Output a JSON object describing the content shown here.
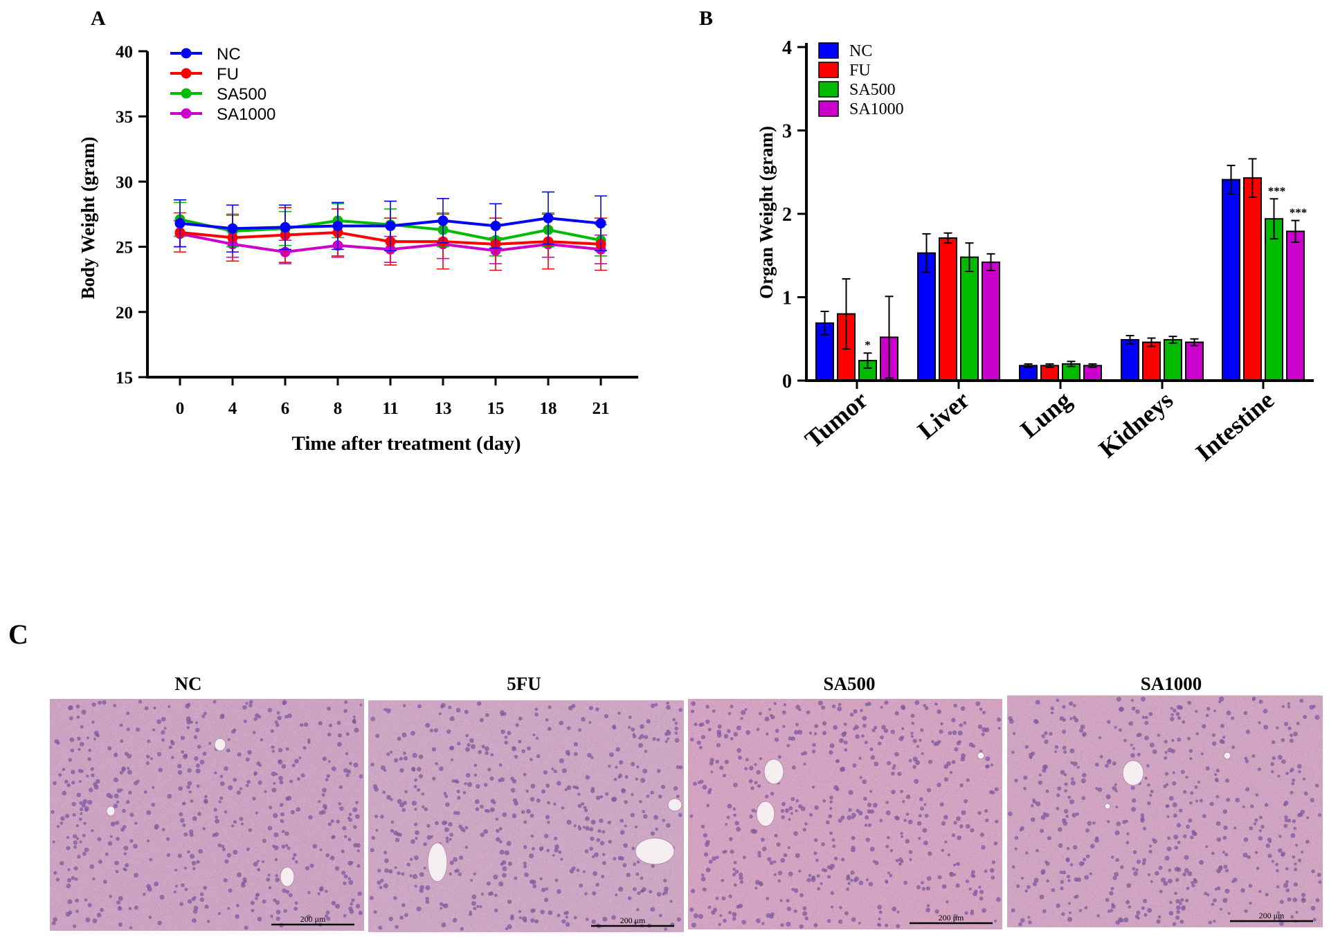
{
  "panels": {
    "a_letter": "A",
    "b_letter": "B",
    "c_letter": "C"
  },
  "colors": {
    "NC": "#0000ff",
    "FU": "#ff0000",
    "SA500": "#00bb00",
    "SA1000": "#cc00cc"
  },
  "chart_data": [
    {
      "type": "line",
      "title": "",
      "xlabel": "Time after treatment (day)",
      "ylabel": "Body Weight (gram)",
      "ylim": [
        15,
        40
      ],
      "yticks": [
        "15",
        "20",
        "25",
        "30",
        "35",
        "40"
      ],
      "x": [
        "0",
        "4",
        "6",
        "8",
        "11",
        "13",
        "15",
        "18",
        "21"
      ],
      "legend": [
        "NC",
        "FU",
        "SA500",
        "SA1000"
      ],
      "series": [
        {
          "name": "NC",
          "values": [
            26.8,
            26.4,
            26.5,
            26.6,
            26.6,
            27.0,
            26.6,
            27.2,
            26.8
          ],
          "errors": [
            1.8,
            1.8,
            1.7,
            1.8,
            1.9,
            1.7,
            1.7,
            2.0,
            2.1
          ]
        },
        {
          "name": "FU",
          "values": [
            26.1,
            25.7,
            25.9,
            26.1,
            25.4,
            25.4,
            25.2,
            25.4,
            25.2
          ],
          "errors": [
            1.5,
            1.8,
            2.1,
            1.8,
            1.8,
            2.1,
            2.0,
            2.1,
            2.0
          ]
        },
        {
          "name": "SA500",
          "values": [
            27.1,
            26.2,
            26.4,
            27.0,
            26.7,
            26.3,
            25.5,
            26.3,
            25.5
          ],
          "errors": [
            1.3,
            1.2,
            1.3,
            1.3,
            1.2,
            1.3,
            1.2,
            1.3,
            1.2
          ]
        },
        {
          "name": "SA1000",
          "values": [
            26.0,
            25.2,
            24.6,
            25.1,
            24.8,
            25.2,
            24.7,
            25.2,
            24.8
          ],
          "errors": [
            1.0,
            1.0,
            0.9,
            0.9,
            1.0,
            1.1,
            1.0,
            1.0,
            1.1
          ]
        }
      ]
    },
    {
      "type": "bar",
      "title": "",
      "xlabel": "",
      "ylabel": "Organ Weight (gram)",
      "ylim": [
        0,
        4
      ],
      "yticks": [
        "0",
        "1",
        "2",
        "3",
        "4"
      ],
      "categories": [
        "Tumor",
        "Liver",
        "Lung",
        "Kidneys",
        "Intestine"
      ],
      "legend": [
        "NC",
        "FU",
        "SA500",
        "SA1000"
      ],
      "series": [
        {
          "name": "NC",
          "values": [
            0.69,
            1.53,
            0.18,
            0.49,
            2.41
          ],
          "errors": [
            0.14,
            0.23,
            0.02,
            0.05,
            0.17
          ],
          "annotations": [
            "",
            "",
            "",
            "",
            ""
          ]
        },
        {
          "name": "FU",
          "values": [
            0.8,
            1.71,
            0.18,
            0.46,
            2.43
          ],
          "errors": [
            0.42,
            0.06,
            0.02,
            0.05,
            0.23
          ],
          "annotations": [
            "",
            "",
            "",
            "",
            ""
          ]
        },
        {
          "name": "SA500",
          "values": [
            0.24,
            1.48,
            0.2,
            0.49,
            1.94
          ],
          "errors": [
            0.09,
            0.17,
            0.03,
            0.04,
            0.24
          ],
          "annotations": [
            "*",
            "",
            "",
            "",
            "***"
          ]
        },
        {
          "name": "SA1000",
          "values": [
            0.52,
            1.42,
            0.18,
            0.46,
            1.79
          ],
          "errors": [
            0.49,
            0.1,
            0.02,
            0.04,
            0.13
          ],
          "annotations": [
            "",
            "",
            "",
            "",
            "***"
          ]
        }
      ]
    }
  ],
  "histology": {
    "images": [
      {
        "label": "NC",
        "scale": "200 μm",
        "tint": "#cf9fc3"
      },
      {
        "label": "5FU",
        "scale": "200 μm",
        "tint": "#d0a3c4"
      },
      {
        "label": "SA500",
        "scale": "200 μm",
        "tint": "#d79fc2"
      },
      {
        "label": "SA1000",
        "scale": "200 μm",
        "tint": "#d3a0c2"
      }
    ]
  }
}
